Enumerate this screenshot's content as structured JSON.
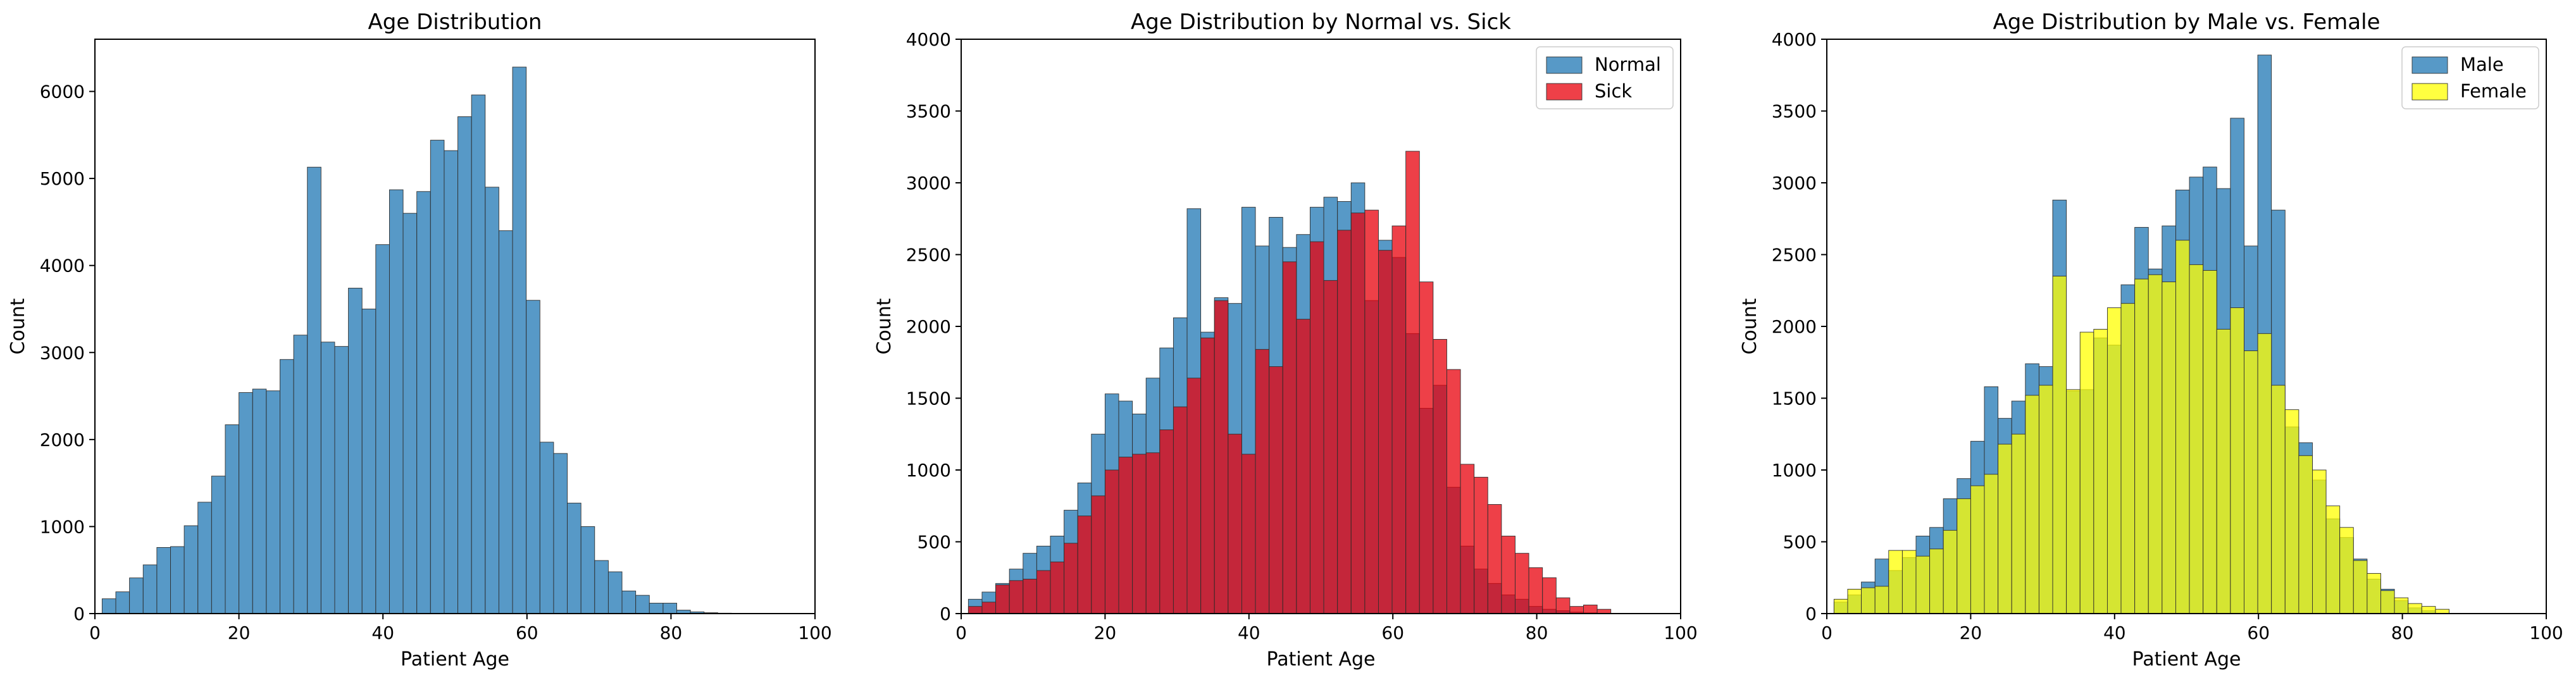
{
  "chart_data": [
    {
      "type": "bar",
      "title": "Age Distribution",
      "xlabel": "Patient Age",
      "ylabel": "Count",
      "xlim": [
        0,
        100
      ],
      "ylim": [
        0,
        6600
      ],
      "xticks": [
        0,
        20,
        40,
        60,
        80,
        100
      ],
      "yticks": [
        0,
        1000,
        2000,
        3000,
        4000,
        5000,
        6000
      ],
      "bin_edges": [
        1,
        2.9,
        4.8,
        6.7,
        8.6,
        10.5,
        12.4,
        14.3,
        16.2,
        18.1,
        20,
        21.9,
        23.8,
        25.7,
        27.6,
        29.5,
        31.4,
        33.3,
        35.2,
        37.1,
        39,
        40.9,
        42.8,
        44.7,
        46.6,
        48.5,
        50.4,
        52.3,
        54.2,
        56.1,
        58,
        59.9,
        61.8,
        63.7,
        65.6,
        67.5,
        69.4,
        71.3,
        73.2,
        75.1,
        77,
        78.9,
        80.8,
        82.7,
        84.6,
        86.5,
        88.4,
        90.3,
        92.2,
        94.1
      ],
      "legend": null,
      "series": [
        {
          "color": "#1f77b4",
          "opacity": 0.75,
          "values": [
            170,
            250,
            410,
            560,
            760,
            770,
            1010,
            1280,
            1580,
            2170,
            2540,
            2580,
            2560,
            2920,
            3200,
            5130,
            3120,
            3070,
            3740,
            3500,
            4240,
            4870,
            4600,
            4850,
            5440,
            5320,
            5710,
            5960,
            4900,
            4400,
            6280,
            3600,
            1970,
            1840,
            1270,
            1000,
            610,
            480,
            260,
            210,
            120,
            120,
            40,
            20,
            10,
            5,
            3,
            0,
            0
          ]
        }
      ]
    },
    {
      "type": "bar",
      "title": "Age Distribution by Normal vs. Sick",
      "xlabel": "Patient Age",
      "ylabel": "Count",
      "xlim": [
        0,
        100
      ],
      "ylim": [
        0,
        4000
      ],
      "xticks": [
        0,
        20,
        40,
        60,
        80,
        100
      ],
      "yticks": [
        0,
        500,
        1000,
        1500,
        2000,
        2500,
        3000,
        3500,
        4000
      ],
      "bin_edges": [
        1,
        2.9,
        4.8,
        6.7,
        8.6,
        10.5,
        12.4,
        14.3,
        16.2,
        18.1,
        20,
        21.9,
        23.8,
        25.7,
        27.6,
        29.5,
        31.4,
        33.3,
        35.2,
        37.1,
        39,
        40.9,
        42.8,
        44.7,
        46.6,
        48.5,
        50.4,
        52.3,
        54.2,
        56.1,
        58,
        59.9,
        61.8,
        63.7,
        65.6,
        67.5,
        69.4,
        71.3,
        73.2,
        75.1,
        77,
        78.9,
        80.8,
        82.7,
        84.6,
        86.5,
        88.4,
        90.3,
        92.2,
        94.1
      ],
      "legend": {
        "position": "upper right"
      },
      "series": [
        {
          "name": "Normal",
          "color": "#1f77b4",
          "opacity": 0.75,
          "values": [
            100,
            150,
            210,
            310,
            420,
            470,
            540,
            720,
            910,
            1250,
            1530,
            1480,
            1390,
            1640,
            1850,
            2060,
            2820,
            1960,
            2200,
            2160,
            2830,
            2560,
            2760,
            2550,
            2640,
            2830,
            2900,
            2870,
            3000,
            2180,
            2600,
            2480,
            1950,
            1430,
            1590,
            880,
            470,
            310,
            210,
            130,
            100,
            50,
            30,
            20,
            10,
            5,
            0,
            0,
            0
          ]
        },
        {
          "name": "Sick",
          "color": "#e8000b",
          "opacity": 0.75,
          "values": [
            50,
            80,
            200,
            230,
            240,
            300,
            360,
            490,
            680,
            820,
            1000,
            1090,
            1110,
            1120,
            1280,
            1440,
            1640,
            1920,
            2180,
            1250,
            1110,
            1840,
            1720,
            2450,
            2050,
            2590,
            2320,
            2670,
            2790,
            2810,
            2530,
            2700,
            3220,
            2310,
            1910,
            1700,
            1040,
            950,
            760,
            540,
            420,
            320,
            250,
            110,
            50,
            60,
            30,
            0,
            0
          ]
        }
      ]
    },
    {
      "type": "bar",
      "title": "Age Distribution by Male vs. Female",
      "xlabel": "Patient Age",
      "ylabel": "Count",
      "xlim": [
        0,
        100
      ],
      "ylim": [
        0,
        4000
      ],
      "xticks": [
        0,
        20,
        40,
        60,
        80,
        100
      ],
      "yticks": [
        0,
        500,
        1000,
        1500,
        2000,
        2500,
        3000,
        3500,
        4000
      ],
      "bin_edges": [
        1,
        2.9,
        4.8,
        6.7,
        8.6,
        10.5,
        12.4,
        14.3,
        16.2,
        18.1,
        20,
        21.9,
        23.8,
        25.7,
        27.6,
        29.5,
        31.4,
        33.3,
        35.2,
        37.1,
        39,
        40.9,
        42.8,
        44.7,
        46.6,
        48.5,
        50.4,
        52.3,
        54.2,
        56.1,
        58,
        59.9,
        61.8,
        63.7,
        65.6,
        67.5,
        69.4,
        71.3,
        73.2,
        75.1,
        77,
        78.9,
        80.8,
        82.7,
        84.6,
        86.5,
        88.4,
        90.3,
        92.2,
        94.1
      ],
      "legend": {
        "position": "upper right"
      },
      "series": [
        {
          "name": "Male",
          "color": "#1f77b4",
          "opacity": 0.75,
          "values": [
            80,
            130,
            220,
            380,
            300,
            390,
            540,
            600,
            800,
            940,
            1200,
            1580,
            1360,
            1480,
            1740,
            1720,
            2880,
            1550,
            1560,
            1920,
            1870,
            2290,
            2690,
            2400,
            2700,
            2950,
            3040,
            3110,
            2960,
            3450,
            2560,
            3890,
            2810,
            1300,
            1190,
            930,
            660,
            530,
            380,
            240,
            170,
            90,
            40,
            20,
            0,
            0,
            0,
            0,
            0
          ]
        },
        {
          "name": "Female",
          "color": "#ffff00",
          "opacity": 0.75,
          "values": [
            100,
            170,
            180,
            190,
            440,
            440,
            400,
            450,
            580,
            800,
            890,
            970,
            1180,
            1250,
            1520,
            1590,
            2350,
            1560,
            1960,
            1980,
            2130,
            2160,
            2330,
            2360,
            2310,
            2600,
            2430,
            2390,
            1980,
            2130,
            1830,
            1950,
            1590,
            1420,
            1100,
            1000,
            750,
            600,
            370,
            280,
            160,
            110,
            70,
            50,
            30,
            0,
            0,
            0,
            0
          ]
        }
      ]
    }
  ]
}
